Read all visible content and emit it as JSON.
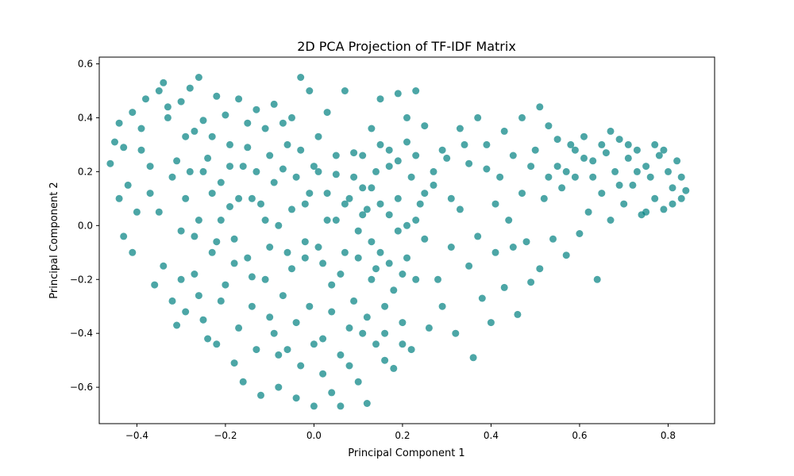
{
  "chart_data": {
    "type": "scatter",
    "title": "2D PCA Projection of TF-IDF Matrix",
    "xlabel": "Principal Component 1",
    "ylabel": "Principal Component 2",
    "xlim": [
      -0.485,
      0.905
    ],
    "ylim": [
      -0.735,
      0.625
    ],
    "xticks": [
      -0.4,
      -0.2,
      0.0,
      0.2,
      0.4,
      0.6,
      0.8
    ],
    "yticks": [
      -0.6,
      -0.4,
      -0.2,
      0.0,
      0.2,
      0.4,
      0.6
    ],
    "xtick_labels": [
      "−0.4",
      "−0.2",
      "0.0",
      "0.2",
      "0.4",
      "0.6",
      "0.8"
    ],
    "ytick_labels": [
      "−0.6",
      "−0.4",
      "−0.2",
      "0.0",
      "0.2",
      "0.4",
      "0.6"
    ],
    "grid": false,
    "legend": "none",
    "color": "#008080",
    "marker_alpha": 0.7,
    "points": [
      [
        -0.46,
        0.23
      ],
      [
        -0.45,
        0.31
      ],
      [
        -0.44,
        0.38
      ],
      [
        -0.43,
        0.29
      ],
      [
        -0.42,
        0.15
      ],
      [
        -0.41,
        0.42
      ],
      [
        -0.4,
        0.05
      ],
      [
        -0.39,
        0.36
      ],
      [
        -0.38,
        0.47
      ],
      [
        -0.37,
        0.22
      ],
      [
        -0.36,
        -0.22
      ],
      [
        -0.35,
        0.5
      ],
      [
        -0.34,
        0.53
      ],
      [
        -0.33,
        0.4
      ],
      [
        -0.32,
        0.18
      ],
      [
        -0.31,
        -0.37
      ],
      [
        -0.3,
        0.46
      ],
      [
        -0.29,
        0.33
      ],
      [
        -0.28,
        0.51
      ],
      [
        -0.27,
        -0.04
      ],
      [
        -0.26,
        0.55
      ],
      [
        -0.25,
        0.39
      ],
      [
        -0.24,
        -0.42
      ],
      [
        -0.23,
        0.12
      ],
      [
        -0.22,
        0.48
      ],
      [
        -0.21,
        -0.28
      ],
      [
        -0.2,
        0.41
      ],
      [
        -0.19,
        0.07
      ],
      [
        -0.18,
        -0.51
      ],
      [
        -0.17,
        0.47
      ],
      [
        -0.16,
        -0.58
      ],
      [
        -0.15,
        0.29
      ],
      [
        -0.14,
        -0.19
      ],
      [
        -0.13,
        0.43
      ],
      [
        -0.12,
        -0.63
      ],
      [
        -0.11,
        0.36
      ],
      [
        -0.1,
        -0.34
      ],
      [
        -0.09,
        0.45
      ],
      [
        -0.08,
        -0.6
      ],
      [
        -0.07,
        0.21
      ],
      [
        -0.06,
        -0.46
      ],
      [
        -0.05,
        0.4
      ],
      [
        -0.04,
        -0.64
      ],
      [
        -0.03,
        0.55
      ],
      [
        -0.02,
        -0.12
      ],
      [
        -0.01,
        0.5
      ],
      [
        0.0,
        -0.67
      ],
      [
        0.01,
        0.33
      ],
      [
        0.02,
        -0.55
      ],
      [
        0.03,
        0.42
      ],
      [
        0.04,
        -0.62
      ],
      [
        0.05,
        0.19
      ],
      [
        0.06,
        -0.67
      ],
      [
        0.07,
        0.5
      ],
      [
        0.08,
        -0.38
      ],
      [
        0.09,
        0.27
      ],
      [
        0.1,
        -0.58
      ],
      [
        0.11,
        0.14
      ],
      [
        0.12,
        -0.66
      ],
      [
        0.13,
        0.36
      ],
      [
        0.14,
        -0.44
      ],
      [
        0.15,
        0.47
      ],
      [
        0.16,
        -0.3
      ],
      [
        0.17,
        0.22
      ],
      [
        0.18,
        -0.53
      ],
      [
        0.19,
        0.49
      ],
      [
        0.2,
        -0.18
      ],
      [
        0.21,
        0.31
      ],
      [
        0.22,
        -0.46
      ],
      [
        0.23,
        0.5
      ],
      [
        -0.44,
        0.1
      ],
      [
        -0.43,
        -0.04
      ],
      [
        -0.41,
        -0.1
      ],
      [
        -0.39,
        0.28
      ],
      [
        -0.37,
        0.12
      ],
      [
        -0.35,
        0.05
      ],
      [
        -0.34,
        -0.15
      ],
      [
        -0.32,
        -0.28
      ],
      [
        -0.3,
        -0.02
      ],
      [
        -0.29,
        -0.32
      ],
      [
        -0.28,
        0.2
      ],
      [
        -0.27,
        -0.18
      ],
      [
        -0.26,
        0.02
      ],
      [
        -0.25,
        -0.35
      ],
      [
        -0.24,
        0.25
      ],
      [
        -0.23,
        -0.1
      ],
      [
        -0.22,
        -0.44
      ],
      [
        -0.21,
        0.16
      ],
      [
        -0.2,
        -0.22
      ],
      [
        -0.19,
        0.3
      ],
      [
        -0.18,
        -0.05
      ],
      [
        -0.17,
        -0.38
      ],
      [
        -0.16,
        0.22
      ],
      [
        -0.15,
        -0.12
      ],
      [
        -0.14,
        0.1
      ],
      [
        -0.13,
        -0.46
      ],
      [
        -0.12,
        0.08
      ],
      [
        -0.11,
        -0.2
      ],
      [
        -0.1,
        0.26
      ],
      [
        -0.09,
        -0.4
      ],
      [
        -0.08,
        0.0
      ],
      [
        -0.07,
        -0.26
      ],
      [
        -0.06,
        0.3
      ],
      [
        -0.05,
        -0.16
      ],
      [
        -0.04,
        0.18
      ],
      [
        -0.03,
        -0.52
      ],
      [
        -0.02,
        0.08
      ],
      [
        -0.01,
        -0.3
      ],
      [
        0.0,
        0.22
      ],
      [
        0.01,
        -0.08
      ],
      [
        0.02,
        -0.42
      ],
      [
        0.03,
        0.12
      ],
      [
        0.04,
        -0.22
      ],
      [
        0.05,
        0.02
      ],
      [
        0.06,
        -0.48
      ],
      [
        0.07,
        -0.1
      ],
      [
        0.08,
        0.1
      ],
      [
        0.09,
        -0.28
      ],
      [
        0.1,
        -0.02
      ],
      [
        0.11,
        -0.4
      ],
      [
        0.12,
        0.06
      ],
      [
        0.13,
        -0.2
      ],
      [
        0.14,
        0.2
      ],
      [
        0.15,
        -0.1
      ],
      [
        0.16,
        -0.4
      ],
      [
        0.17,
        0.04
      ],
      [
        0.18,
        -0.24
      ],
      [
        0.19,
        0.1
      ],
      [
        0.2,
        -0.36
      ],
      [
        0.21,
        0.0
      ],
      [
        0.22,
        0.18
      ],
      [
        0.23,
        -0.2
      ],
      [
        0.24,
        0.08
      ],
      [
        0.25,
        -0.05
      ],
      [
        0.26,
        -0.38
      ],
      [
        0.27,
        0.15
      ],
      [
        0.28,
        -0.2
      ],
      [
        0.29,
        -0.3
      ],
      [
        0.3,
        0.25
      ],
      [
        0.31,
        -0.08
      ],
      [
        0.32,
        -0.4
      ],
      [
        0.33,
        0.06
      ],
      [
        0.34,
        0.3
      ],
      [
        0.35,
        -0.15
      ],
      [
        0.36,
        -0.49
      ],
      [
        0.37,
        -0.04
      ],
      [
        0.38,
        -0.27
      ],
      [
        0.39,
        0.21
      ],
      [
        0.4,
        -0.36
      ],
      [
        0.41,
        -0.1
      ],
      [
        0.42,
        0.18
      ],
      [
        0.43,
        -0.23
      ],
      [
        0.44,
        0.02
      ],
      [
        0.45,
        -0.08
      ],
      [
        0.46,
        -0.33
      ],
      [
        0.47,
        0.12
      ],
      [
        0.48,
        -0.06
      ],
      [
        0.49,
        -0.21
      ],
      [
        0.5,
        0.28
      ],
      [
        0.51,
        -0.16
      ],
      [
        0.52,
        0.1
      ],
      [
        0.53,
        0.37
      ],
      [
        0.54,
        -0.05
      ],
      [
        0.55,
        0.22
      ],
      [
        0.56,
        0.14
      ],
      [
        0.57,
        -0.11
      ],
      [
        0.58,
        0.3
      ],
      [
        0.59,
        0.18
      ],
      [
        0.6,
        -0.03
      ],
      [
        0.61,
        0.33
      ],
      [
        0.62,
        0.05
      ],
      [
        0.63,
        0.24
      ],
      [
        0.64,
        -0.2
      ],
      [
        0.65,
        0.12
      ],
      [
        0.66,
        0.27
      ],
      [
        0.67,
        0.02
      ],
      [
        0.68,
        0.2
      ],
      [
        0.69,
        0.32
      ],
      [
        0.7,
        0.08
      ],
      [
        0.71,
        0.25
      ],
      [
        0.72,
        0.15
      ],
      [
        0.73,
        0.28
      ],
      [
        0.74,
        0.04
      ],
      [
        0.75,
        0.22
      ],
      [
        0.76,
        0.18
      ],
      [
        0.77,
        0.1
      ],
      [
        0.78,
        0.26
      ],
      [
        0.79,
        0.06
      ],
      [
        0.8,
        0.2
      ],
      [
        0.81,
        0.14
      ],
      [
        0.82,
        0.24
      ],
      [
        0.83,
        0.1
      ],
      [
        0.84,
        0.13
      ],
      [
        0.83,
        0.18
      ],
      [
        0.81,
        0.08
      ],
      [
        0.79,
        0.28
      ],
      [
        0.77,
        0.3
      ],
      [
        0.75,
        0.05
      ],
      [
        0.73,
        0.2
      ],
      [
        0.71,
        0.3
      ],
      [
        0.69,
        0.15
      ],
      [
        0.67,
        0.35
      ],
      [
        0.65,
        0.3
      ],
      [
        0.63,
        0.18
      ],
      [
        0.61,
        0.25
      ],
      [
        0.59,
        0.28
      ],
      [
        0.57,
        0.2
      ],
      [
        0.55,
        0.32
      ],
      [
        0.53,
        0.18
      ],
      [
        0.51,
        0.44
      ],
      [
        0.49,
        0.22
      ],
      [
        0.47,
        0.4
      ],
      [
        0.45,
        0.26
      ],
      [
        0.43,
        0.35
      ],
      [
        0.41,
        0.08
      ],
      [
        0.39,
        0.3
      ],
      [
        0.37,
        0.4
      ],
      [
        0.35,
        0.23
      ],
      [
        0.33,
        0.36
      ],
      [
        0.31,
        0.1
      ],
      [
        0.29,
        0.28
      ],
      [
        0.27,
        0.2
      ],
      [
        0.25,
        0.37
      ],
      [
        0.23,
        0.26
      ],
      [
        0.21,
        0.4
      ],
      [
        0.19,
        0.24
      ],
      [
        0.17,
        0.28
      ],
      [
        0.15,
        0.3
      ],
      [
        0.13,
        0.14
      ],
      [
        0.11,
        0.26
      ],
      [
        -0.33,
        0.44
      ],
      [
        -0.31,
        0.24
      ],
      [
        -0.29,
        0.1
      ],
      [
        -0.27,
        0.35
      ],
      [
        -0.25,
        0.2
      ],
      [
        -0.23,
        0.33
      ],
      [
        -0.21,
        0.02
      ],
      [
        -0.19,
        0.22
      ],
      [
        -0.17,
        0.1
      ],
      [
        -0.15,
        0.38
      ],
      [
        -0.13,
        0.2
      ],
      [
        -0.11,
        0.02
      ],
      [
        -0.09,
        0.16
      ],
      [
        -0.07,
        0.38
      ],
      [
        -0.05,
        0.06
      ],
      [
        -0.03,
        0.28
      ],
      [
        -0.01,
        0.12
      ],
      [
        0.01,
        0.2
      ],
      [
        0.03,
        0.02
      ],
      [
        0.05,
        0.26
      ],
      [
        0.07,
        0.08
      ],
      [
        0.09,
        0.18
      ],
      [
        0.11,
        0.04
      ],
      [
        0.13,
        -0.06
      ],
      [
        0.15,
        0.08
      ],
      [
        0.17,
        -0.14
      ],
      [
        0.19,
        -0.02
      ],
      [
        0.21,
        -0.12
      ],
      [
        0.23,
        0.02
      ],
      [
        0.25,
        0.12
      ],
      [
        -0.1,
        -0.08
      ],
      [
        -0.06,
        -0.1
      ],
      [
        -0.02,
        -0.06
      ],
      [
        0.02,
        -0.14
      ],
      [
        0.06,
        -0.18
      ],
      [
        0.1,
        -0.12
      ],
      [
        0.14,
        -0.16
      ],
      [
        -0.08,
        -0.48
      ],
      [
        -0.04,
        -0.36
      ],
      [
        0.0,
        -0.44
      ],
      [
        0.04,
        -0.32
      ],
      [
        0.08,
        -0.52
      ],
      [
        0.12,
        -0.34
      ],
      [
        0.16,
        -0.5
      ],
      [
        0.2,
        -0.44
      ],
      [
        -0.14,
        -0.3
      ],
      [
        -0.18,
        -0.14
      ],
      [
        -0.22,
        -0.06
      ],
      [
        -0.26,
        -0.26
      ],
      [
        -0.3,
        -0.2
      ]
    ]
  }
}
